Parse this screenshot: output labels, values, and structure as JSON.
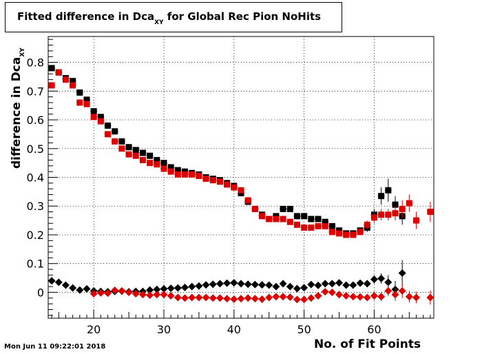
{
  "chart_data": {
    "type": "scatter",
    "title": "Fitted difference in Dca",
    "title_subscript": "XY",
    "title_suffix": " for Global Rec Pion NoHits",
    "xlabel": "No. of Fit Points",
    "ylabel": "difference in Dca",
    "ylabel_subscript": "XY",
    "xlim": [
      13.5,
      68.5
    ],
    "ylim": [
      -0.09,
      0.89
    ],
    "xticks": [
      20,
      30,
      40,
      50,
      60
    ],
    "yticks": [
      0,
      0.1,
      0.2,
      0.3,
      0.4,
      0.5,
      0.6,
      0.7,
      0.8
    ],
    "ytick_labels": [
      "0",
      "0.1",
      "0.2",
      "0.3",
      "0.4",
      "0.5",
      "0.6",
      "0.7",
      "0.8"
    ],
    "grid": true,
    "series": [
      {
        "marker": "square",
        "color": "#000000",
        "x": [
          14,
          15,
          16,
          17,
          18,
          19,
          20,
          21,
          22,
          23,
          24,
          25,
          26,
          27,
          28,
          29,
          30,
          31,
          32,
          33,
          34,
          35,
          36,
          37,
          38,
          39,
          40,
          41,
          42,
          43,
          44,
          45,
          46,
          47,
          48,
          49,
          50,
          51,
          52,
          53,
          54,
          55,
          56,
          57,
          58,
          59,
          60,
          61,
          62,
          63,
          64
        ],
        "y": [
          0.78,
          0.765,
          0.745,
          0.735,
          0.695,
          0.67,
          0.63,
          0.61,
          0.58,
          0.56,
          0.525,
          0.505,
          0.495,
          0.485,
          0.475,
          0.46,
          0.45,
          0.435,
          0.425,
          0.42,
          0.415,
          0.41,
          0.4,
          0.395,
          0.39,
          0.38,
          0.37,
          0.345,
          0.315,
          0.29,
          0.27,
          0.255,
          0.265,
          0.29,
          0.29,
          0.265,
          0.265,
          0.255,
          0.255,
          0.245,
          0.23,
          0.215,
          0.205,
          0.205,
          0.215,
          0.225,
          0.27,
          0.335,
          0.355,
          0.305,
          0.265
        ],
        "err": [
          0.01,
          0.01,
          0.01,
          0.01,
          0.01,
          0.01,
          0.01,
          0.01,
          0.01,
          0.01,
          0.01,
          0.01,
          0.01,
          0.01,
          0.01,
          0.01,
          0.01,
          0.01,
          0.01,
          0.01,
          0.01,
          0.01,
          0.01,
          0.01,
          0.01,
          0.01,
          0.01,
          0.01,
          0.01,
          0.01,
          0.01,
          0.01,
          0.01,
          0.01,
          0.01,
          0.01,
          0.01,
          0.01,
          0.01,
          0.01,
          0.01,
          0.01,
          0.01,
          0.01,
          0.01,
          0.015,
          0.02,
          0.03,
          0.04,
          0.03,
          0.03
        ]
      },
      {
        "marker": "square",
        "color": "#dd0000",
        "x": [
          14,
          15,
          16,
          17,
          18,
          19,
          20,
          21,
          22,
          23,
          24,
          25,
          26,
          27,
          28,
          29,
          30,
          31,
          32,
          33,
          34,
          35,
          36,
          37,
          38,
          39,
          40,
          41,
          42,
          43,
          44,
          45,
          46,
          47,
          48,
          49,
          50,
          51,
          52,
          53,
          54,
          55,
          56,
          57,
          58,
          59,
          60,
          61,
          62,
          63,
          64,
          65,
          66,
          68
        ],
        "y": [
          0.72,
          0.765,
          0.74,
          0.72,
          0.66,
          0.655,
          0.61,
          0.595,
          0.55,
          0.525,
          0.5,
          0.48,
          0.475,
          0.46,
          0.45,
          0.445,
          0.43,
          0.42,
          0.41,
          0.41,
          0.41,
          0.405,
          0.395,
          0.39,
          0.385,
          0.375,
          0.365,
          0.355,
          0.32,
          0.29,
          0.265,
          0.255,
          0.255,
          0.255,
          0.245,
          0.235,
          0.225,
          0.225,
          0.23,
          0.23,
          0.21,
          0.205,
          0.2,
          0.2,
          0.21,
          0.235,
          0.26,
          0.27,
          0.27,
          0.275,
          0.29,
          0.31,
          0.25,
          0.28
        ],
        "err": [
          0.01,
          0.01,
          0.01,
          0.01,
          0.01,
          0.01,
          0.01,
          0.01,
          0.01,
          0.01,
          0.01,
          0.01,
          0.01,
          0.01,
          0.01,
          0.01,
          0.01,
          0.01,
          0.01,
          0.01,
          0.01,
          0.01,
          0.01,
          0.01,
          0.01,
          0.01,
          0.01,
          0.01,
          0.01,
          0.01,
          0.01,
          0.01,
          0.01,
          0.01,
          0.01,
          0.01,
          0.01,
          0.01,
          0.01,
          0.01,
          0.01,
          0.01,
          0.01,
          0.01,
          0.01,
          0.015,
          0.02,
          0.02,
          0.02,
          0.025,
          0.03,
          0.03,
          0.03,
          0.035
        ]
      },
      {
        "marker": "diamond",
        "color": "#000000",
        "x": [
          14,
          15,
          16,
          17,
          18,
          19,
          20,
          21,
          22,
          23,
          24,
          25,
          26,
          27,
          28,
          29,
          30,
          31,
          32,
          33,
          34,
          35,
          36,
          37,
          38,
          39,
          40,
          41,
          42,
          43,
          44,
          45,
          46,
          47,
          48,
          49,
          50,
          51,
          52,
          53,
          54,
          55,
          56,
          57,
          58,
          59,
          60,
          61,
          62,
          63,
          64
        ],
        "y": [
          0.04,
          0.035,
          0.025,
          0.015,
          0.008,
          0.012,
          0.005,
          0.003,
          0.002,
          0.003,
          0.004,
          0.002,
          0.003,
          0.003,
          0.008,
          0.01,
          0.012,
          0.014,
          0.015,
          0.017,
          0.02,
          0.022,
          0.026,
          0.028,
          0.03,
          0.032,
          0.033,
          0.03,
          0.028,
          0.027,
          0.026,
          0.025,
          0.02,
          0.03,
          0.02,
          0.013,
          0.016,
          0.027,
          0.024,
          0.03,
          0.03,
          0.033,
          0.025,
          0.025,
          0.032,
          0.03,
          0.045,
          0.048,
          0.035,
          0.01,
          0.067
        ],
        "err": [
          0.01,
          0.01,
          0.01,
          0.01,
          0.01,
          0.01,
          0.01,
          0.01,
          0.01,
          0.01,
          0.01,
          0.01,
          0.01,
          0.01,
          0.01,
          0.01,
          0.01,
          0.01,
          0.01,
          0.01,
          0.01,
          0.01,
          0.01,
          0.01,
          0.01,
          0.01,
          0.01,
          0.01,
          0.01,
          0.01,
          0.01,
          0.01,
          0.01,
          0.01,
          0.01,
          0.01,
          0.01,
          0.01,
          0.01,
          0.01,
          0.01,
          0.01,
          0.01,
          0.01,
          0.01,
          0.012,
          0.015,
          0.018,
          0.025,
          0.03,
          0.045
        ]
      },
      {
        "marker": "diamond",
        "color": "#dd0000",
        "x": [
          20,
          21,
          22,
          23,
          24,
          25,
          26,
          27,
          28,
          29,
          30,
          31,
          32,
          33,
          34,
          35,
          36,
          37,
          38,
          39,
          40,
          41,
          42,
          43,
          44,
          45,
          46,
          47,
          48,
          49,
          50,
          51,
          52,
          53,
          54,
          55,
          56,
          57,
          58,
          59,
          60,
          61,
          62,
          63,
          64,
          65,
          66,
          68
        ],
        "y": [
          -0.005,
          -0.002,
          -0.003,
          0.007,
          0.005,
          0.0,
          -0.005,
          -0.008,
          -0.01,
          -0.008,
          -0.008,
          -0.012,
          -0.018,
          -0.02,
          -0.018,
          -0.018,
          -0.018,
          -0.02,
          -0.02,
          -0.022,
          -0.024,
          -0.022,
          -0.02,
          -0.022,
          -0.024,
          -0.018,
          -0.015,
          -0.015,
          -0.017,
          -0.025,
          -0.025,
          -0.02,
          -0.012,
          0.002,
          0.0,
          -0.008,
          -0.012,
          -0.015,
          -0.016,
          -0.018,
          -0.012,
          -0.015,
          0.005,
          -0.008,
          0.005,
          -0.015,
          -0.018,
          -0.018
        ],
        "err": [
          0.01,
          0.01,
          0.01,
          0.01,
          0.01,
          0.01,
          0.01,
          0.01,
          0.01,
          0.01,
          0.01,
          0.01,
          0.01,
          0.01,
          0.01,
          0.01,
          0.01,
          0.01,
          0.01,
          0.01,
          0.01,
          0.01,
          0.01,
          0.01,
          0.01,
          0.01,
          0.01,
          0.01,
          0.01,
          0.01,
          0.01,
          0.01,
          0.01,
          0.01,
          0.01,
          0.01,
          0.01,
          0.01,
          0.01,
          0.012,
          0.015,
          0.015,
          0.018,
          0.022,
          0.025,
          0.02,
          0.02,
          0.025
        ]
      }
    ]
  },
  "timestamp": "Mon Jun 11 09:22:01 2018"
}
